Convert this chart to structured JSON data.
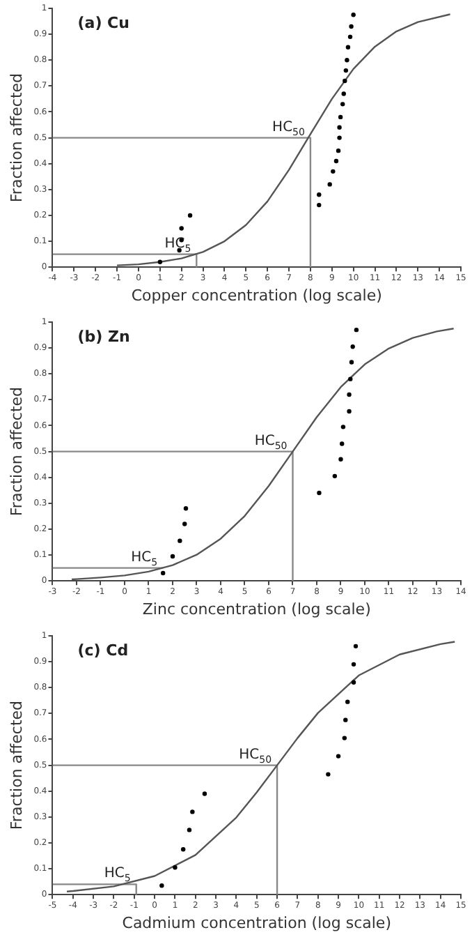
{
  "chart_data": [
    {
      "type": "scatter",
      "title": "(a) Cu",
      "xlabel": "Copper concentration (log scale)",
      "ylabel": "Fraction affected",
      "xlim": [
        -4,
        15
      ],
      "xticks": [
        -4,
        -3,
        -2,
        -1,
        0,
        1,
        2,
        3,
        4,
        5,
        6,
        7,
        8,
        9,
        10,
        11,
        12,
        13,
        14,
        15
      ],
      "ylim": [
        0,
        1
      ],
      "yticks": [
        0,
        0.1,
        0.2,
        0.3,
        0.4,
        0.5,
        0.6,
        0.7,
        0.8,
        0.9,
        1
      ],
      "grid": false,
      "legend": false,
      "annotations": [
        {
          "text": "HC$_{50}$",
          "x": 8,
          "y": 0.5
        },
        {
          "text": "HC$_{5}$",
          "x": 2.7,
          "y": 0.05
        }
      ],
      "series": [
        {
          "type": "scatter",
          "color": "#000000",
          "marker": "circle",
          "x": [
            1,
            1.9,
            2,
            2,
            2.4,
            8.4,
            8.4,
            8.9,
            9.05,
            9.2,
            9.3,
            9.35,
            9.35,
            9.4,
            9.5,
            9.55,
            9.6,
            9.65,
            9.7,
            9.75,
            9.85,
            9.9,
            10
          ],
          "values": [
            0.02,
            0.065,
            0.105,
            0.15,
            0.2,
            0.24,
            0.28,
            0.32,
            0.37,
            0.41,
            0.45,
            0.5,
            0.54,
            0.58,
            0.63,
            0.67,
            0.72,
            0.76,
            0.8,
            0.85,
            0.89,
            0.93,
            0.975
          ]
        },
        {
          "type": "line",
          "color": "#555555",
          "marker": "none",
          "x": [
            -1,
            0,
            1,
            2,
            3,
            4,
            5,
            6,
            7,
            8,
            9,
            10,
            11,
            12,
            13,
            14.5
          ],
          "values": [
            0.007,
            0.011,
            0.02,
            0.034,
            0.059,
            0.1,
            0.163,
            0.254,
            0.376,
            0.514,
            0.65,
            0.766,
            0.852,
            0.911,
            0.947,
            0.977
          ]
        },
        {
          "type": "line",
          "color": "#888888",
          "marker": "none",
          "x": [
            -4,
            8,
            8
          ],
          "values": [
            0.5,
            0.5,
            0
          ]
        },
        {
          "type": "line",
          "color": "#888888",
          "marker": "none",
          "x": [
            -4,
            2.7,
            2.7
          ],
          "values": [
            0.05,
            0.05,
            0
          ]
        }
      ]
    },
    {
      "type": "scatter",
      "title": "(b) Zn",
      "xlabel": "Zinc concentration (log scale)",
      "ylabel": "Fraction affected",
      "xlim": [
        -3,
        14
      ],
      "xticks": [
        -3,
        -2,
        -1,
        0,
        1,
        2,
        3,
        4,
        5,
        6,
        7,
        8,
        9,
        10,
        11,
        12,
        13,
        14
      ],
      "ylim": [
        0,
        1
      ],
      "yticks": [
        0,
        0.1,
        0.2,
        0.3,
        0.4,
        0.5,
        0.6,
        0.7,
        0.8,
        0.9,
        1
      ],
      "grid": false,
      "legend": false,
      "annotations": [
        {
          "text": "HC$_{50}$",
          "x": 7,
          "y": 0.5
        },
        {
          "text": "HC$_{5}$",
          "x": 1.6,
          "y": 0.05
        }
      ],
      "series": [
        {
          "type": "scatter",
          "color": "#000000",
          "marker": "circle",
          "x": [
            1.6,
            2,
            2.3,
            2.5,
            2.55,
            8.1,
            8.75,
            9,
            9.05,
            9.1,
            9.35,
            9.35,
            9.4,
            9.45,
            9.5,
            9.65
          ],
          "values": [
            0.03,
            0.095,
            0.155,
            0.22,
            0.28,
            0.34,
            0.405,
            0.47,
            0.53,
            0.595,
            0.655,
            0.72,
            0.78,
            0.845,
            0.905,
            0.97
          ]
        },
        {
          "type": "line",
          "color": "#555555",
          "marker": "none",
          "x": [
            -2.2,
            -2,
            -1,
            0,
            1,
            2,
            3,
            4,
            5,
            6,
            7,
            8,
            9,
            10,
            11,
            12,
            13,
            13.7
          ],
          "values": [
            0.006,
            0.007,
            0.013,
            0.021,
            0.036,
            0.061,
            0.101,
            0.163,
            0.251,
            0.367,
            0.5,
            0.633,
            0.749,
            0.837,
            0.898,
            0.939,
            0.964,
            0.975
          ]
        },
        {
          "type": "line",
          "color": "#888888",
          "marker": "none",
          "x": [
            -3,
            7,
            7
          ],
          "values": [
            0.5,
            0.5,
            0
          ]
        },
        {
          "type": "line",
          "color": "#888888",
          "marker": "none",
          "x": [
            -3,
            1.6
          ],
          "values": [
            0.05,
            0.05
          ]
        }
      ]
    },
    {
      "type": "scatter",
      "title": "(c) Cd",
      "xlabel": "Cadmium concentration (log scale)",
      "ylabel": "Fraction affected",
      "xlim": [
        -5,
        15
      ],
      "xticks": [
        -5,
        -4,
        -3,
        -2,
        -1,
        0,
        1,
        2,
        3,
        4,
        5,
        6,
        7,
        8,
        9,
        10,
        11,
        12,
        13,
        14,
        15
      ],
      "ylim": [
        0,
        1
      ],
      "yticks": [
        0,
        0.1,
        0.2,
        0.3,
        0.4,
        0.5,
        0.6,
        0.7,
        0.8,
        0.9,
        1
      ],
      "grid": false,
      "legend": false,
      "annotations": [
        {
          "text": "HC$_{50}$",
          "x": 6,
          "y": 0.5
        },
        {
          "text": "HC$_{5}$",
          "x": -0.9,
          "y": 0.04
        }
      ],
      "series": [
        {
          "type": "scatter",
          "color": "#000000",
          "marker": "circle",
          "x": [
            0.35,
            1,
            1.4,
            1.7,
            1.85,
            2.45,
            8.5,
            9,
            9.3,
            9.35,
            9.45,
            9.75,
            9.75,
            9.85
          ],
          "values": [
            0.035,
            0.105,
            0.175,
            0.25,
            0.32,
            0.39,
            0.465,
            0.535,
            0.605,
            0.675,
            0.745,
            0.82,
            0.89,
            0.96
          ]
        },
        {
          "type": "line",
          "color": "#555555",
          "marker": "none",
          "x": [
            -4.3,
            -4,
            -2,
            0,
            2,
            4,
            5,
            6,
            7,
            8,
            10,
            12,
            14,
            14.7
          ],
          "values": [
            0.012,
            0.014,
            0.032,
            0.072,
            0.153,
            0.298,
            0.395,
            0.5,
            0.605,
            0.702,
            0.847,
            0.928,
            0.968,
            0.977
          ]
        },
        {
          "type": "line",
          "color": "#888888",
          "marker": "none",
          "x": [
            -5,
            6,
            6
          ],
          "values": [
            0.5,
            0.5,
            0
          ]
        },
        {
          "type": "line",
          "color": "#888888",
          "marker": "none",
          "x": [
            -5,
            -0.9,
            -0.9
          ],
          "values": [
            0.04,
            0.04,
            0
          ]
        }
      ]
    }
  ]
}
